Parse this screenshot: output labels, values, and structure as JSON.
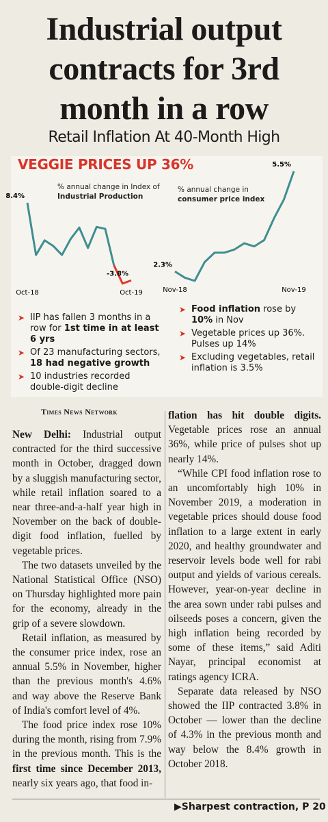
{
  "headline": "Industrial output contracts for 3rd month in a row",
  "subheadline": "Retail Inflation At 40-Month High",
  "banner": "VEGGIE PRICES UP 36%",
  "charts": [
    {
      "type": "line",
      "note": [
        {
          "text": "% annual change in Index of "
        },
        {
          "text": "Industrial Production",
          "bold": true
        }
      ],
      "categories": [
        "Oct-18",
        null,
        null,
        null,
        null,
        null,
        null,
        null,
        null,
        null,
        null,
        null,
        "Oct-19"
      ],
      "series": [
        {
          "color": "#3f8e92",
          "values": [
            8.4,
            0.2,
            2.5,
            1.6,
            0.2,
            2.7,
            4.5,
            1.3,
            4.6,
            4.3,
            -1.4,
            null,
            null
          ],
          "value_labels": [
            "8.4%",
            null,
            null,
            null,
            null,
            null,
            null,
            null,
            null,
            null,
            null,
            null,
            null
          ]
        },
        {
          "color": "#e0392c",
          "values": [
            null,
            null,
            null,
            null,
            null,
            null,
            null,
            null,
            null,
            null,
            -1.4,
            -4.3,
            -3.8
          ],
          "value_labels": [
            null,
            null,
            null,
            null,
            null,
            null,
            null,
            null,
            null,
            null,
            null,
            null,
            "-3.8%"
          ]
        }
      ]
    },
    {
      "type": "line",
      "note": [
        {
          "text": "% annual change in "
        },
        {
          "text": "consumer price index",
          "bold": true
        }
      ],
      "categories": [
        "Nov-18",
        null,
        null,
        null,
        null,
        null,
        null,
        null,
        null,
        null,
        null,
        null,
        "Nov-19"
      ],
      "series": [
        {
          "color": "#3f8e92",
          "values": [
            2.3,
            2.1,
            2.0,
            2.6,
            2.9,
            2.9,
            3.0,
            3.2,
            3.1,
            3.3,
            4.0,
            4.6,
            5.5
          ],
          "value_labels": [
            "2.3%",
            null,
            null,
            null,
            null,
            null,
            null,
            null,
            null,
            null,
            null,
            null,
            "5.5%"
          ]
        }
      ]
    }
  ],
  "bullets_left": [
    [
      {
        "text": "IIP has fallen 3 months in a row for "
      },
      {
        "text": "1st time in at least 6 yrs",
        "bold": true
      }
    ],
    [
      {
        "text": "Of 23 manufacturing sectors, "
      },
      {
        "text": "18 had negative growth",
        "bold": true
      }
    ],
    [
      {
        "text": "10 industries recorded double-digit decline"
      }
    ]
  ],
  "bullets_right": [
    [
      {
        "text": "Food inflation",
        "bold": true
      },
      {
        "text": " rose by "
      },
      {
        "text": "10%",
        "bold": true
      },
      {
        "text": " in Nov"
      }
    ],
    [
      {
        "text": "Vegetable prices up 36%. Pulses up 14%"
      }
    ],
    [
      {
        "text": "Excluding vegetables, retail inflation is 3.5%"
      }
    ]
  ],
  "byline": "Times News Network",
  "columns": [
    [
      [
        {
          "text": "New Delhi:",
          "bold": true
        },
        {
          "text": " Industrial output contracted for the third successive month in October, dragged down by a sluggish manufacturing sector, while retail inflation soared to a near three-and-a-half year high in November on the back of double-digit food inflation, fuelled by vegetable prices."
        }
      ],
      [
        {
          "text": "The two datasets unveiled by the National Statistical Office (NSO) on Thursday highlighted more pain for the economy, already in the grip of a severe slowdown."
        }
      ],
      [
        {
          "text": "Retail inflation, as measured by the consumer price index, rose an annual 5.5% in November, higher than the previous month's 4.6% and way above the Reserve Bank of India's comfort level of 4%."
        }
      ],
      [
        {
          "text": "The food price index rose 10% during the month, rising from 7.9% in the previous month. This is the "
        },
        {
          "text": "first time since December 2013,",
          "bold": true
        },
        {
          "text": " nearly six years ago, that food in-"
        }
      ]
    ],
    [
      [
        {
          "text": "flation has hit double digits.",
          "bold": true
        },
        {
          "text": " Vegetable prices rose an annual 36%, while price of pulses shot up nearly 14%."
        }
      ],
      [
        {
          "text": "“While CPI food inflation rose to an uncomfortably high 10% in November 2019, a moderation in vegetable prices should douse food inflation to a large extent in early 2020, and healthy groundwater and reservoir levels bode well for rabi output and yields of various cereals. However, year-on-year decline in the area sown under rabi pulses and oilseeds poses a concern, given the high inflation being recorded by some of these items,” said Aditi Nayar, principal economist at ratings agency ICRA."
        }
      ],
      [
        {
          "text": "Separate data released by NSO showed the IIP contracted 3.8% in October — lower than the decline of 4.3% in the previous month and way below the 8.4% growth in October 2018."
        }
      ]
    ]
  ],
  "footer": "Sharpest contraction, P 20"
}
